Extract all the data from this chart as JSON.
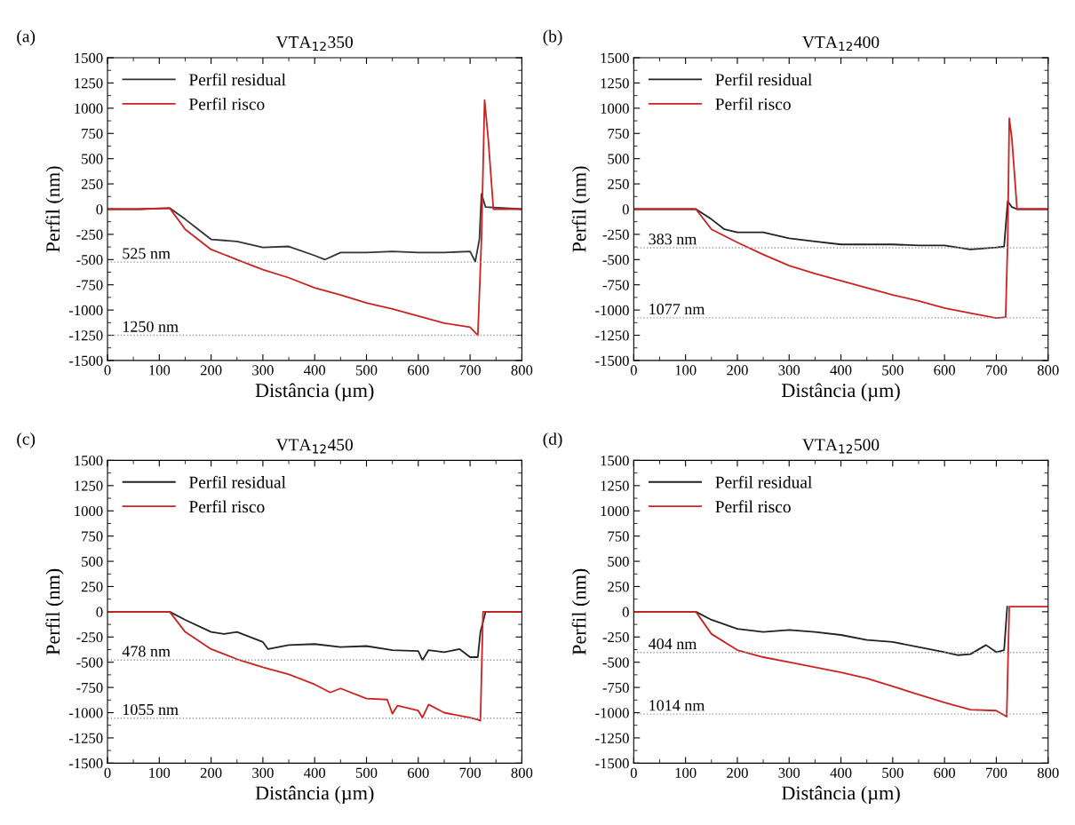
{
  "chart_data": [
    {
      "type": "line",
      "title": "VTA$_{12}$350",
      "xlabel": "Distância (µm)",
      "ylabel": "Perfil (nm)",
      "annotations": [
        "(a)"
      ],
      "xlim": [
        0,
        800
      ],
      "xticks": [
        0,
        100,
        200,
        300,
        400,
        500,
        600,
        700,
        800
      ],
      "ylim": [
        -1500,
        1500
      ],
      "yticks": [
        -1500,
        -1250,
        -1000,
        -750,
        -500,
        -250,
        0,
        250,
        500,
        750,
        1000,
        1250,
        1500
      ],
      "legend": "top left",
      "grid": false,
      "ref_lines": [
        {
          "axis": "y",
          "value": -525,
          "label": "525 nm",
          "color": "#999999",
          "line_style": "dotted"
        },
        {
          "axis": "y",
          "value": -1250,
          "label": "1250 nm",
          "color": "#999999",
          "line_style": "dotted"
        }
      ],
      "series": [
        {
          "name": "Perfil residual",
          "color": "#333333",
          "x": [
            0,
            60,
            120,
            150,
            175,
            200,
            250,
            300,
            350,
            400,
            420,
            450,
            500,
            550,
            600,
            650,
            700,
            710,
            718,
            722,
            730,
            800
          ],
          "values": [
            0,
            0,
            10,
            -100,
            -200,
            -300,
            -320,
            -380,
            -370,
            -460,
            -500,
            -430,
            -430,
            -420,
            -430,
            -430,
            -420,
            -520,
            -300,
            150,
            20,
            0
          ]
        },
        {
          "name": "Perfil risco",
          "color": "#cc2222",
          "x": [
            0,
            60,
            120,
            150,
            200,
            250,
            300,
            350,
            400,
            450,
            500,
            550,
            600,
            650,
            700,
            715,
            722,
            728,
            735,
            745,
            800
          ],
          "values": [
            0,
            0,
            10,
            -200,
            -400,
            -500,
            -600,
            -680,
            -780,
            -850,
            -930,
            -990,
            -1060,
            -1130,
            -1170,
            -1250,
            -300,
            1080,
            700,
            0,
            0
          ]
        }
      ]
    },
    {
      "type": "line",
      "title": "VTA$_{12}$400",
      "xlabel": "Distância (µm)",
      "ylabel": "Perfil (nm)",
      "annotations": [
        "(b)"
      ],
      "xlim": [
        0,
        800
      ],
      "xticks": [
        0,
        100,
        200,
        300,
        400,
        500,
        600,
        700,
        800
      ],
      "ylim": [
        -1500,
        1500
      ],
      "yticks": [
        -1500,
        -1250,
        -1000,
        -750,
        -500,
        -250,
        0,
        250,
        500,
        750,
        1000,
        1250,
        1500
      ],
      "legend": "top left",
      "grid": false,
      "ref_lines": [
        {
          "axis": "y",
          "value": -383,
          "label": "383 nm",
          "color": "#999999",
          "line_style": "dotted"
        },
        {
          "axis": "y",
          "value": -1077,
          "label": "1077 nm",
          "color": "#999999",
          "line_style": "dotted"
        }
      ],
      "series": [
        {
          "name": "Perfil residual",
          "color": "#222222",
          "x": [
            0,
            60,
            120,
            150,
            175,
            200,
            250,
            300,
            350,
            400,
            450,
            500,
            550,
            600,
            650,
            700,
            715,
            722,
            730,
            740,
            800
          ],
          "values": [
            0,
            0,
            0,
            -100,
            -200,
            -230,
            -230,
            -290,
            -320,
            -350,
            -350,
            -350,
            -360,
            -360,
            -400,
            -380,
            -370,
            80,
            20,
            0,
            0
          ]
        },
        {
          "name": "Perfil risco",
          "color": "#cc2222",
          "x": [
            0,
            60,
            120,
            150,
            200,
            250,
            300,
            350,
            400,
            450,
            500,
            550,
            600,
            650,
            700,
            718,
            722,
            725,
            730,
            740,
            800
          ],
          "values": [
            0,
            0,
            0,
            -200,
            -330,
            -450,
            -560,
            -640,
            -710,
            -780,
            -850,
            -910,
            -980,
            -1030,
            -1080,
            -1070,
            -300,
            900,
            700,
            0,
            0
          ]
        }
      ]
    },
    {
      "type": "line",
      "title": "VTA$_{12}$450",
      "xlabel": "Distância (µm)",
      "ylabel": "Perfil (nm)",
      "annotations": [
        "(c)"
      ],
      "xlim": [
        0,
        800
      ],
      "xticks": [
        0,
        100,
        200,
        300,
        400,
        500,
        600,
        700,
        800
      ],
      "ylim": [
        -1500,
        1500
      ],
      "yticks": [
        -1500,
        -1250,
        -1000,
        -750,
        -500,
        -250,
        0,
        250,
        500,
        750,
        1000,
        1250,
        1500
      ],
      "legend": "top left",
      "grid": false,
      "ref_lines": [
        {
          "axis": "y",
          "value": -478,
          "label": "478 nm",
          "color": "#999999",
          "line_style": "dotted"
        },
        {
          "axis": "y",
          "value": -1055,
          "label": "1055 nm",
          "color": "#999999",
          "line_style": "dotted"
        }
      ],
      "series": [
        {
          "name": "Perfil residual",
          "color": "#222222",
          "x": [
            0,
            60,
            120,
            150,
            200,
            225,
            250,
            300,
            310,
            350,
            400,
            450,
            500,
            550,
            600,
            608,
            620,
            650,
            680,
            700,
            715,
            720,
            730,
            800
          ],
          "values": [
            0,
            0,
            0,
            -80,
            -200,
            -220,
            -200,
            -300,
            -370,
            -330,
            -320,
            -350,
            -340,
            -380,
            -390,
            -480,
            -380,
            -400,
            -370,
            -450,
            -450,
            -200,
            0,
            0
          ]
        },
        {
          "name": "Perfil risco",
          "color": "#cc2222",
          "x": [
            0,
            60,
            120,
            150,
            200,
            250,
            300,
            350,
            400,
            430,
            450,
            500,
            540,
            550,
            560,
            600,
            608,
            620,
            650,
            700,
            715,
            720,
            725,
            800
          ],
          "values": [
            0,
            0,
            0,
            -200,
            -370,
            -470,
            -550,
            -620,
            -720,
            -800,
            -760,
            -860,
            -870,
            -1010,
            -930,
            -980,
            -1050,
            -920,
            -1000,
            -1050,
            -1070,
            -1080,
            0,
            0
          ]
        }
      ]
    },
    {
      "type": "line",
      "title": "VTA$_{12}$500",
      "xlabel": "Distância (µm)",
      "ylabel": "Perfil (nm)",
      "annotations": [
        "(d)"
      ],
      "xlim": [
        0,
        800
      ],
      "xticks": [
        0,
        100,
        200,
        300,
        400,
        500,
        600,
        700,
        800
      ],
      "ylim": [
        -1500,
        1500
      ],
      "yticks": [
        -1500,
        -1250,
        -1000,
        -750,
        -500,
        -250,
        0,
        250,
        500,
        750,
        1000,
        1250,
        1500
      ],
      "legend": "top left",
      "grid": false,
      "ref_lines": [
        {
          "axis": "y",
          "value": -404,
          "label": "404 nm",
          "color": "#999999",
          "line_style": "dotted"
        },
        {
          "axis": "y",
          "value": -1014,
          "label": "1014 nm",
          "color": "#999999",
          "line_style": "dotted"
        }
      ],
      "series": [
        {
          "name": "Perfil residual",
          "color": "#222222",
          "x": [
            0,
            60,
            120,
            150,
            200,
            250,
            300,
            350,
            400,
            450,
            500,
            550,
            600,
            625,
            650,
            680,
            700,
            715,
            721
          ],
          "values": [
            0,
            0,
            0,
            -80,
            -170,
            -200,
            -180,
            -200,
            -230,
            -280,
            -300,
            -350,
            -400,
            -430,
            -420,
            -330,
            -400,
            -380,
            50
          ]
        },
        {
          "name": "Perfil risco",
          "color": "#cc2222",
          "x": [
            0,
            60,
            120,
            150,
            200,
            250,
            300,
            350,
            400,
            450,
            500,
            550,
            600,
            650,
            700,
            720,
            725,
            800
          ],
          "values": [
            0,
            0,
            0,
            -220,
            -380,
            -450,
            -500,
            -550,
            -600,
            -660,
            -740,
            -820,
            -900,
            -970,
            -980,
            -1040,
            50,
            50
          ]
        }
      ]
    }
  ]
}
